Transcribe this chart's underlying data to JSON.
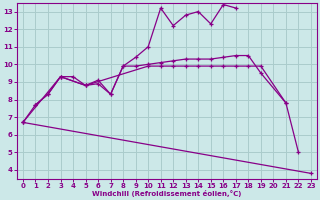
{
  "background_color": "#cce8e8",
  "grid_color": "#aacccc",
  "line_color": "#880088",
  "xlim": [
    -0.5,
    23.5
  ],
  "ylim": [
    3.5,
    13.5
  ],
  "xticks": [
    0,
    1,
    2,
    3,
    4,
    5,
    6,
    7,
    8,
    9,
    10,
    11,
    12,
    13,
    14,
    15,
    16,
    17,
    18,
    19,
    20,
    21,
    22,
    23
  ],
  "yticks": [
    4,
    5,
    6,
    7,
    8,
    9,
    10,
    11,
    12,
    13
  ],
  "xlabel": "Windchill (Refroidissement éolien,°C)",
  "series": [
    {
      "x": [
        1,
        2,
        3,
        4,
        5,
        6,
        7,
        8,
        9,
        10,
        11,
        12,
        13,
        14,
        15,
        16,
        17
      ],
      "y": [
        7.7,
        8.3,
        9.3,
        9.3,
        8.8,
        8.9,
        8.3,
        9.9,
        10.4,
        11.0,
        13.2,
        12.2,
        12.8,
        13.0,
        12.3,
        13.4,
        13.2
      ]
    },
    {
      "x": [
        0,
        1,
        2,
        3,
        5,
        6,
        7,
        8,
        9,
        10,
        11,
        12,
        13,
        14,
        15,
        16,
        17,
        18,
        19,
        21,
        22
      ],
      "y": [
        6.7,
        7.7,
        8.3,
        9.3,
        8.8,
        9.1,
        8.3,
        9.9,
        9.9,
        10.0,
        10.1,
        10.2,
        10.3,
        10.3,
        10.3,
        10.4,
        10.5,
        10.5,
        9.5,
        7.8,
        5.0
      ]
    },
    {
      "x": [
        0,
        3,
        5,
        10,
        11,
        12,
        13,
        14,
        15,
        16,
        17,
        18,
        19,
        21
      ],
      "y": [
        6.7,
        9.3,
        8.8,
        9.9,
        9.9,
        9.9,
        9.9,
        9.9,
        9.9,
        9.9,
        9.9,
        9.9,
        9.9,
        7.8
      ]
    },
    {
      "x": [
        0,
        23
      ],
      "y": [
        6.7,
        3.8
      ]
    }
  ]
}
